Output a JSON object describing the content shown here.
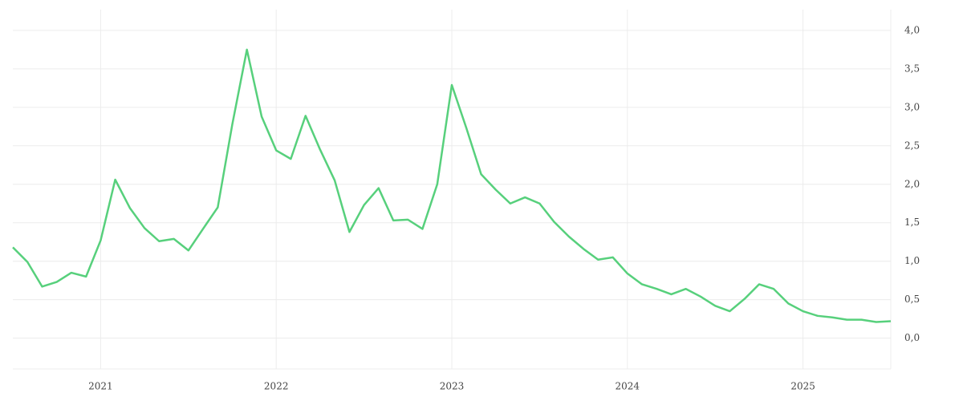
{
  "chart_data": {
    "type": "line",
    "x": [
      2020.5,
      2020.583,
      2020.667,
      2020.75,
      2020.833,
      2020.917,
      2021,
      2021.083,
      2021.167,
      2021.25,
      2021.333,
      2021.417,
      2021.5,
      2021.583,
      2021.667,
      2021.75,
      2021.833,
      2021.917,
      2022,
      2022.083,
      2022.167,
      2022.25,
      2022.333,
      2022.417,
      2022.5,
      2022.583,
      2022.667,
      2022.75,
      2022.833,
      2022.917,
      2023,
      2023.083,
      2023.167,
      2023.25,
      2023.333,
      2023.417,
      2023.5,
      2023.583,
      2023.667,
      2023.75,
      2023.833,
      2023.917,
      2024,
      2024.083,
      2024.167,
      2024.25,
      2024.333,
      2024.417,
      2024.5,
      2024.583,
      2024.667,
      2024.75,
      2024.833,
      2024.917,
      2025,
      2025.083,
      2025.167,
      2025.25,
      2025.333,
      2025.417,
      2025.5
    ],
    "series": [
      {
        "color": "#57d07c",
        "values": [
          1.18,
          0.99,
          0.67,
          0.73,
          0.85,
          0.8,
          1.27,
          2.06,
          1.69,
          1.43,
          1.26,
          1.29,
          1.14,
          1.42,
          1.7,
          2.78,
          3.75,
          2.88,
          2.44,
          2.33,
          2.89,
          2.45,
          2.05,
          1.38,
          1.73,
          1.95,
          1.53,
          1.54,
          1.42,
          2.0,
          3.29,
          2.73,
          2.13,
          1.93,
          1.75,
          1.83,
          1.75,
          1.51,
          1.32,
          1.16,
          1.02,
          1.05,
          0.84,
          0.7,
          0.64,
          0.57,
          0.64,
          0.54,
          0.42,
          0.35,
          0.51,
          0.7,
          0.64,
          0.45,
          0.35,
          0.29,
          0.27,
          0.24,
          0.24,
          0.21,
          0.22
        ]
      }
    ],
    "xlim": [
      2020.5,
      2025.5
    ],
    "xticks": [
      2021,
      2022,
      2023,
      2024,
      2025
    ],
    "ylim": [
      -0.4,
      4.27
    ],
    "yticks": [
      {
        "value": 0,
        "label": "0,0"
      },
      {
        "value": 0.5,
        "label": "0,5"
      },
      {
        "value": 1,
        "label": "1,0"
      },
      {
        "value": 1.5,
        "label": "1,5"
      },
      {
        "value": 2,
        "label": "2,0"
      },
      {
        "value": 2.5,
        "label": "2,5"
      },
      {
        "value": 3,
        "label": "3,0"
      },
      {
        "value": 3.5,
        "label": "3,5"
      },
      {
        "value": 4,
        "label": "4,0"
      }
    ],
    "grid": true
  }
}
